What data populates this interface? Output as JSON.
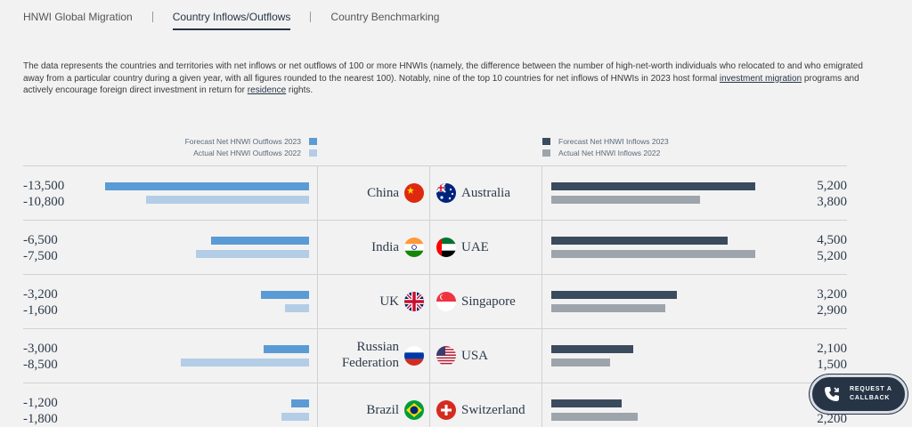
{
  "tabs": [
    {
      "label": "HNWI Global Migration",
      "active": false
    },
    {
      "label": "Country Inflows/Outflows",
      "active": true
    },
    {
      "label": "Country Benchmarking",
      "active": false
    }
  ],
  "description": {
    "part1": "The data represents the countries and territories with net inflows or net outflows of 100 or more HNWIs (namely, the difference between the number of high-net-worth individuals who relocated to and who emigrated away from a particular country during a given year, with all figures rounded to the nearest 100). Notably, nine of the top 10 countries for net inflows of HNWIs in 2023 host formal ",
    "link1": "investment migration",
    "part2": " programs and actively encourage foreign direct investment in return for ",
    "link2": "residence",
    "part3": " rights."
  },
  "legend_left": {
    "forecast": "Forecast Net HNWI Outflows 2023",
    "actual": "Actual Net HNWI Outflows 2022"
  },
  "legend_right": {
    "forecast": "Forecast Net HNWI Inflows 2023",
    "actual": "Actual Net HNWI Inflows 2022"
  },
  "colors": {
    "outflow_forecast": "#5b9bd5",
    "outflow_actual": "#b4cde6",
    "inflow_forecast": "#3b4b5e",
    "inflow_actual": "#9da4ab"
  },
  "chart_data": {
    "type": "bar",
    "xlim_outflows": [
      -13500,
      0
    ],
    "xlim_inflows": [
      0,
      5200
    ],
    "outflows": [
      {
        "country": "China",
        "forecast_2023": "-13,500",
        "actual_2022": "-10,800",
        "forecast_value": -13500,
        "actual_value": -10800,
        "flag": "china-flag"
      },
      {
        "country": "India",
        "forecast_2023": "-6,500",
        "actual_2022": "-7,500",
        "forecast_value": -6500,
        "actual_value": -7500,
        "flag": "india-flag"
      },
      {
        "country": "UK",
        "forecast_2023": "-3,200",
        "actual_2022": "-1,600",
        "forecast_value": -3200,
        "actual_value": -1600,
        "flag": "uk-flag"
      },
      {
        "country": "Russian Federation",
        "forecast_2023": "-3,000",
        "actual_2022": "-8,500",
        "forecast_value": -3000,
        "actual_value": -8500,
        "flag": "russia-flag"
      },
      {
        "country": "Brazil",
        "forecast_2023": "-1,200",
        "actual_2022": "-1,800",
        "forecast_value": -1200,
        "actual_value": -1800,
        "flag": "brazil-flag"
      }
    ],
    "inflows": [
      {
        "country": "Australia",
        "forecast_2023": "5,200",
        "actual_2022": "3,800",
        "forecast_value": 5200,
        "actual_value": 3800,
        "flag": "australia-flag"
      },
      {
        "country": "UAE",
        "forecast_2023": "4,500",
        "actual_2022": "5,200",
        "forecast_value": 4500,
        "actual_value": 5200,
        "flag": "uae-flag"
      },
      {
        "country": "Singapore",
        "forecast_2023": "3,200",
        "actual_2022": "2,900",
        "forecast_value": 3200,
        "actual_value": 2900,
        "flag": "singapore-flag"
      },
      {
        "country": "USA",
        "forecast_2023": "2,100",
        "actual_2022": "1,500",
        "forecast_value": 2100,
        "actual_value": 1500,
        "flag": "usa-flag"
      },
      {
        "country": "Switzerland",
        "forecast_2023": "1,800",
        "actual_2022": "2,200",
        "forecast_value": 1800,
        "actual_value": 2200,
        "flag": "switzerland-flag"
      }
    ]
  },
  "callback": {
    "label": "REQUEST A\nCALLBACK",
    "icon": "phone-icon"
  }
}
